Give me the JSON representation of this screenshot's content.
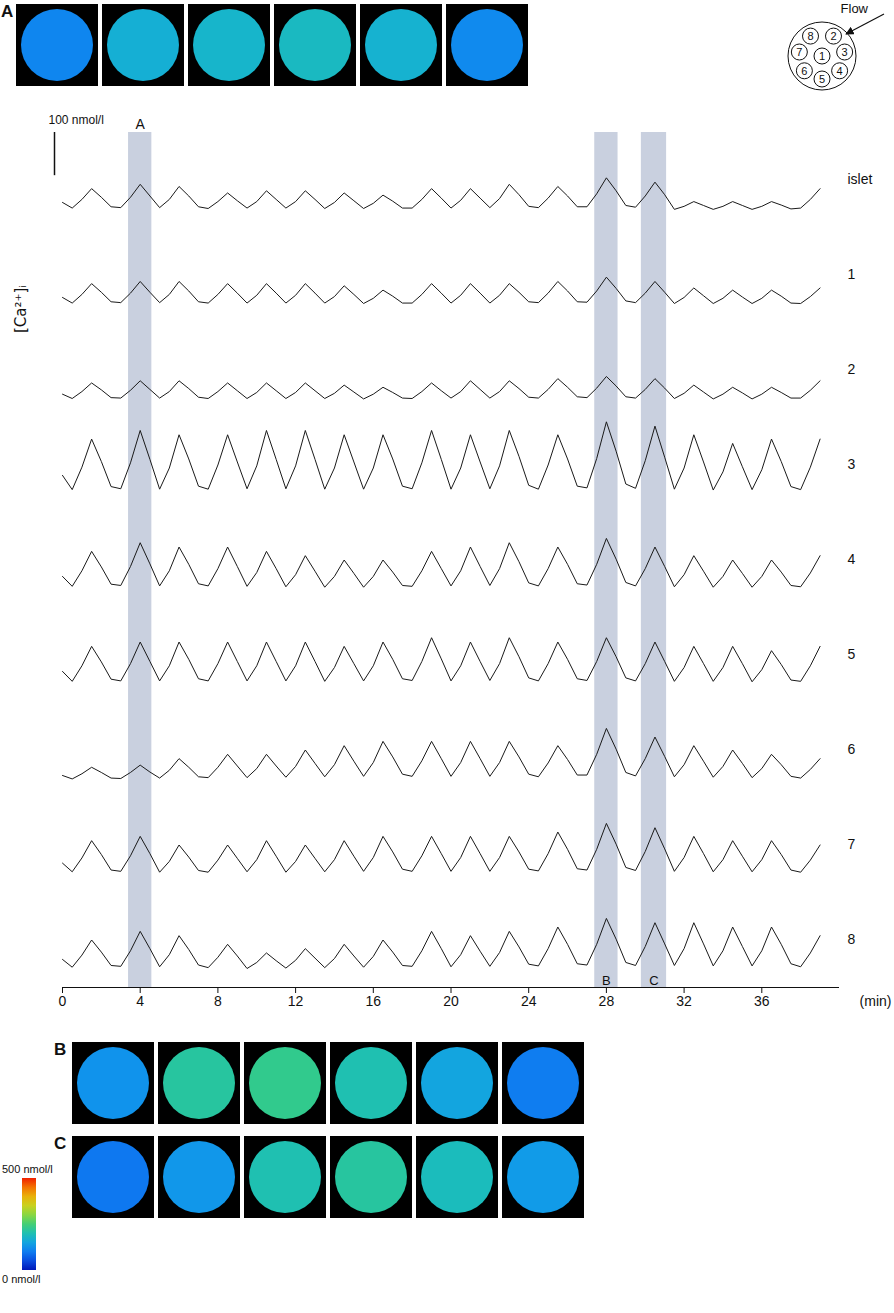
{
  "chart_data": {
    "type": "line",
    "y_label": "[Ca²⁺]ᵢ",
    "x_label": "(min)",
    "x": [
      0,
      0.5,
      1,
      1.5,
      2,
      2.5,
      3,
      3.5,
      4,
      4.5,
      5,
      5.5,
      6,
      6.5,
      7,
      7.5,
      8,
      8.5,
      9,
      9.5,
      10,
      10.5,
      11,
      11.5,
      12,
      12.5,
      13,
      13.5,
      14,
      14.5,
      15,
      15.5,
      16,
      16.5,
      17,
      17.5,
      18,
      18.5,
      19,
      19.5,
      20,
      20.5,
      21,
      21.5,
      22,
      22.5,
      23,
      23.5,
      24,
      24.5,
      25,
      25.5,
      26,
      26.5,
      27,
      27.5,
      28,
      28.5,
      29,
      29.5,
      30,
      30.5,
      31,
      31.5,
      32,
      32.5,
      33,
      33.5,
      34,
      34.5,
      35,
      35.5,
      36,
      36.5,
      37,
      37.5,
      38,
      38.5,
      39
    ],
    "xlim": [
      0,
      40
    ],
    "xticks": [
      0,
      4,
      8,
      12,
      16,
      20,
      24,
      28,
      32,
      36
    ],
    "ylim": [
      60,
      280
    ],
    "tick_labels": "x",
    "series": [
      {
        "name": "islet",
        "color": "#1a1a1a",
        "values": [
          118,
          105,
          125,
          150,
          130,
          108,
          106,
          130,
          160,
          133,
          106,
          125,
          155,
          133,
          108,
          104,
          120,
          140,
          122,
          105,
          120,
          145,
          125,
          105,
          120,
          145,
          125,
          104,
          118,
          140,
          122,
          104,
          116,
          135,
          121,
          105,
          105,
          125,
          150,
          128,
          105,
          123,
          150,
          128,
          106,
          127,
          160,
          136,
          109,
          106,
          128,
          155,
          133,
          108,
          108,
          138,
          175,
          145,
          111,
          107,
          133,
          165,
          136,
          102,
          109,
          120,
          111,
          102,
          109,
          120,
          111,
          102,
          109,
          120,
          112,
          103,
          105,
          125,
          150
        ]
      },
      {
        "name": "1",
        "color": "#1a1a1a",
        "values": [
          118,
          105,
          125,
          150,
          130,
          108,
          106,
          128,
          155,
          130,
          106,
          125,
          155,
          133,
          108,
          105,
          125,
          150,
          128,
          105,
          123,
          150,
          128,
          105,
          123,
          150,
          128,
          105,
          120,
          145,
          125,
          104,
          116,
          135,
          121,
          105,
          105,
          125,
          150,
          128,
          105,
          123,
          150,
          128,
          105,
          123,
          150,
          130,
          108,
          106,
          128,
          155,
          133,
          108,
          107,
          133,
          165,
          139,
          110,
          106,
          128,
          155,
          130,
          104,
          118,
          140,
          122,
          104,
          116,
          135,
          119,
          104,
          116,
          135,
          121,
          105,
          104,
          120,
          140
        ]
      },
      {
        "name": "2",
        "color": "#1a1a1a",
        "values": [
          114,
          104,
          120,
          140,
          124,
          106,
          105,
          123,
          145,
          125,
          105,
          120,
          145,
          127,
          107,
          104,
          120,
          140,
          122,
          104,
          118,
          140,
          122,
          104,
          118,
          140,
          122,
          104,
          116,
          135,
          119,
          103,
          114,
          130,
          118,
          105,
          104,
          120,
          140,
          122,
          105,
          120,
          145,
          125,
          105,
          120,
          145,
          127,
          107,
          105,
          125,
          150,
          130,
          108,
          106,
          128,
          155,
          133,
          108,
          105,
          125,
          150,
          128,
          104,
          116,
          135,
          119,
          103,
          114,
          130,
          117,
          103,
          114,
          130,
          118,
          105,
          105,
          123,
          145
        ]
      },
      {
        "name": "3",
        "color": "#1a1a1a",
        "values": [
          146,
          113,
          165,
          230,
          178,
          120,
          115,
          175,
          250,
          183,
          114,
          163,
          240,
          184,
          121,
          114,
          170,
          240,
          177,
          115,
          168,
          250,
          183,
          115,
          168,
          250,
          183,
          114,
          163,
          240,
          177,
          114,
          163,
          240,
          184,
          121,
          115,
          175,
          250,
          183,
          114,
          163,
          240,
          177,
          115,
          168,
          250,
          190,
          123,
          114,
          170,
          240,
          184,
          121,
          117,
          185,
          270,
          202,
          126,
          116,
          180,
          260,
          188,
          114,
          163,
          240,
          177,
          112,
          154,
          220,
          166,
          113,
          159,
          230,
          178,
          120,
          113,
          165,
          230
        ]
      },
      {
        "name": "4",
        "color": "#1a1a1a",
        "values": [
          132,
          109,
          145,
          190,
          154,
          114,
          111,
          155,
          210,
          161,
          110,
          145,
          200,
          160,
          115,
          110,
          150,
          200,
          155,
          109,
          141,
          190,
          150,
          108,
          136,
          180,
          144,
          107,
          132,
          170,
          139,
          107,
          132,
          170,
          142,
          111,
          109,
          145,
          190,
          150,
          110,
          145,
          200,
          155,
          111,
          150,
          210,
          166,
          117,
          110,
          150,
          200,
          160,
          115,
          112,
          160,
          220,
          172,
          118,
          110,
          150,
          200,
          155,
          108,
          136,
          180,
          144,
          107,
          132,
          170,
          139,
          107,
          132,
          170,
          142,
          111,
          108,
          140,
          180
        ]
      },
      {
        "name": "5",
        "color": "#1a1a1a",
        "values": [
          132,
          109,
          145,
          190,
          154,
          114,
          110,
          150,
          200,
          155,
          110,
          145,
          200,
          160,
          115,
          110,
          150,
          200,
          155,
          110,
          145,
          200,
          155,
          110,
          145,
          200,
          155,
          109,
          141,
          190,
          150,
          110,
          145,
          200,
          160,
          115,
          111,
          155,
          210,
          161,
          110,
          145,
          200,
          155,
          111,
          150,
          210,
          166,
          117,
          110,
          150,
          200,
          160,
          115,
          111,
          155,
          210,
          166,
          117,
          110,
          150,
          200,
          155,
          109,
          141,
          190,
          150,
          109,
          141,
          190,
          150,
          108,
          136,
          180,
          148,
          112,
          109,
          145,
          190
        ]
      },
      {
        "name": "6",
        "color": "#1a1a1a",
        "values": [
          111,
          103,
          115,
          130,
          118,
          105,
          104,
          118,
          135,
          119,
          105,
          123,
          150,
          130,
          108,
          106,
          130,
          160,
          133,
          106,
          127,
          160,
          133,
          107,
          132,
          170,
          139,
          108,
          136,
          180,
          144,
          109,
          141,
          190,
          154,
          114,
          109,
          145,
          190,
          150,
          109,
          141,
          190,
          150,
          109,
          141,
          190,
          154,
          114,
          108,
          140,
          180,
          148,
          112,
          112,
          160,
          220,
          172,
          118,
          110,
          150,
          200,
          155,
          108,
          136,
          180,
          144,
          107,
          132,
          170,
          139,
          106,
          127,
          160,
          136,
          109,
          105,
          125,
          150
        ]
      },
      {
        "name": "7",
        "color": "#1a1a1a",
        "values": [
          128,
          108,
          140,
          180,
          148,
          112,
          109,
          145,
          190,
          150,
          107,
          132,
          170,
          142,
          111,
          107,
          135,
          170,
          139,
          108,
          136,
          180,
          144,
          107,
          132,
          170,
          139,
          108,
          136,
          180,
          144,
          109,
          141,
          190,
          154,
          114,
          109,
          145,
          190,
          150,
          109,
          141,
          190,
          150,
          109,
          141,
          190,
          154,
          114,
          110,
          150,
          200,
          160,
          115,
          112,
          160,
          220,
          172,
          118,
          111,
          155,
          210,
          161,
          109,
          141,
          190,
          150,
          108,
          136,
          180,
          144,
          108,
          136,
          180,
          148,
          112,
          107,
          135,
          170
        ]
      },
      {
        "name": "8",
        "color": "#1a1a1a",
        "values": [
          125,
          107,
          135,
          170,
          142,
          111,
          109,
          145,
          190,
          150,
          108,
          136,
          180,
          148,
          112,
          106,
          130,
          160,
          133,
          104,
          118,
          140,
          122,
          105,
          123,
          150,
          128,
          106,
          127,
          160,
          133,
          107,
          132,
          170,
          142,
          111,
          109,
          145,
          190,
          150,
          108,
          136,
          180,
          144,
          109,
          141,
          190,
          154,
          114,
          110,
          150,
          200,
          160,
          115,
          112,
          160,
          220,
          172,
          118,
          111,
          155,
          210,
          161,
          111,
          150,
          210,
          161,
          110,
          145,
          200,
          155,
          110,
          145,
          200,
          160,
          115,
          108,
          140,
          180
        ]
      }
    ],
    "scale_bar": {
      "value": 100,
      "label": "100 nmol/l"
    },
    "highlights": [
      {
        "label": "A",
        "x": [
          3.4,
          4.6
        ],
        "frames": [
          110,
          165,
          175,
          185,
          170,
          115
        ]
      },
      {
        "label": "B",
        "x": [
          27.4,
          28.6
        ],
        "frames": [
          125,
          215,
          230,
          200,
          150,
          100
        ]
      },
      {
        "label": "C",
        "x": [
          29.8,
          31.1
        ],
        "frames": [
          95,
          130,
          200,
          215,
          190,
          135
        ]
      }
    ],
    "colorbar": {
      "range": [
        0,
        500
      ],
      "ticks": [
        {
          "value": 0,
          "label": "0 nmol/l"
        },
        {
          "value": 500,
          "label": "500 nmol/l"
        }
      ]
    },
    "flow_label": "Flow"
  }
}
